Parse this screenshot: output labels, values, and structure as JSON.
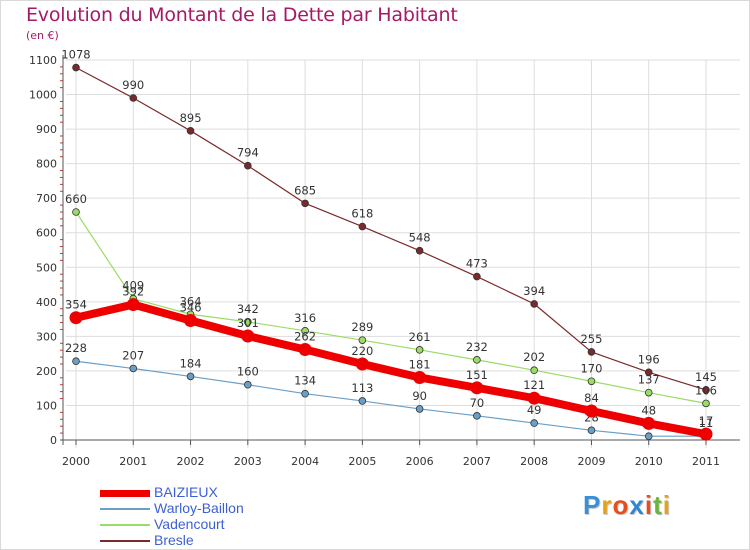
{
  "header": {
    "title": "Evolution du Montant de la Dette par Habitant",
    "subtitle": "(en €)"
  },
  "brand": {
    "letters": [
      "P",
      "r",
      "o",
      "x",
      "i",
      "t",
      "i"
    ],
    "colors": [
      "#3a8fd6",
      "#e7a11b",
      "#e84d1c",
      "#2f87cf",
      "#e84d1c",
      "#6db33f",
      "#e7a11b"
    ]
  },
  "colors": {
    "title": "#a51a66",
    "legend_text": "#3d5fd6",
    "grid": "#dddddd",
    "axis": "#555555"
  },
  "chart_data": {
    "type": "line",
    "title": "Evolution du Montant de la Dette par Habitant",
    "subtitle": "(en €)",
    "categories": [
      "2000",
      "2001",
      "2002",
      "2003",
      "2004",
      "2005",
      "2006",
      "2007",
      "2008",
      "2009",
      "2010",
      "2011"
    ],
    "yticks": [
      "0",
      "100",
      "200",
      "300",
      "400",
      "500",
      "600",
      "700",
      "800",
      "900",
      "1000",
      "1100"
    ],
    "ylim": [
      0,
      1100
    ],
    "grid": true,
    "legend_position": "bottom-left",
    "series": [
      {
        "name": "BAIZIEUX",
        "color": "#ee0000",
        "values": [
          354,
          392,
          346,
          301,
          262,
          220,
          181,
          151,
          121,
          84,
          48,
          17
        ]
      },
      {
        "name": "Warloy-Baillon",
        "color": "#6a9fc8",
        "values": [
          228,
          207,
          184,
          160,
          134,
          113,
          90,
          70,
          49,
          28,
          11,
          11
        ]
      },
      {
        "name": "Vadencourt",
        "color": "#99dd66",
        "values": [
          660,
          409,
          364,
          342,
          316,
          289,
          261,
          232,
          202,
          170,
          137,
          106
        ]
      },
      {
        "name": "Bresle",
        "color": "#7a2a2a",
        "values": [
          1078,
          990,
          895,
          794,
          685,
          618,
          548,
          473,
          394,
          255,
          196,
          145
        ]
      }
    ]
  }
}
